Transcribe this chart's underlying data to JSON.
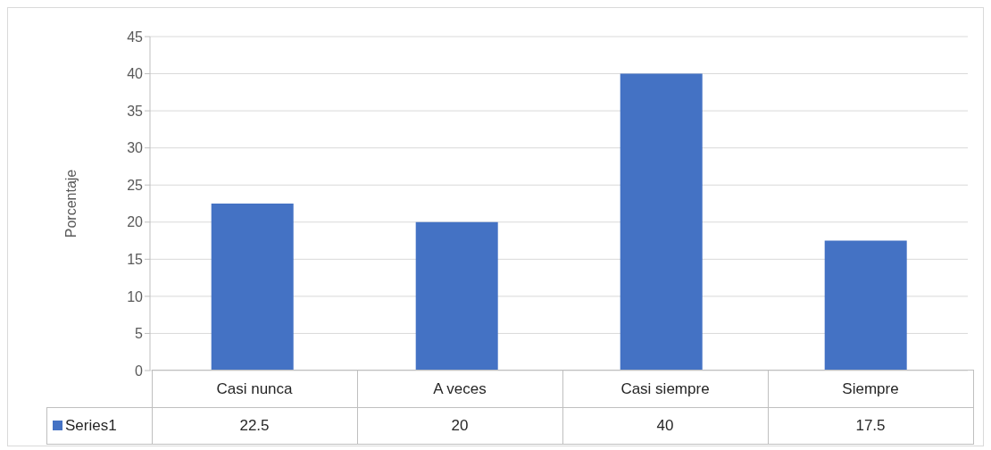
{
  "chart_data": {
    "type": "bar",
    "ylabel": "Porcentaje",
    "categories": [
      "Casi nunca",
      "A veces",
      "Casi siempre",
      "Siempre"
    ],
    "series": [
      {
        "name": "Series1",
        "color": "#4472c4",
        "values": [
          22.5,
          20,
          40,
          17.5
        ]
      }
    ],
    "ylim": [
      0,
      45
    ],
    "yticks": [
      0,
      5,
      10,
      15,
      20,
      25,
      30,
      35,
      40,
      45
    ],
    "grid": "y",
    "data_labels": true,
    "legend": "bottom"
  }
}
